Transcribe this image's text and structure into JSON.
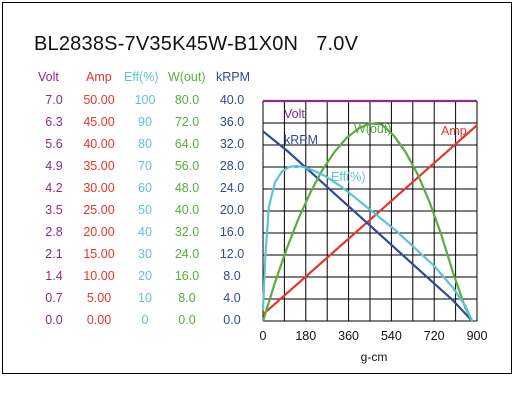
{
  "title": "BL2838S-7V35K45W-B1X0N",
  "voltage_label": "7.0V",
  "colors": {
    "volt": "#8b2c8b",
    "amp": "#e8352a",
    "eff": "#5bc4d8",
    "wout": "#5aad3c",
    "krpm": "#2f4a9c",
    "grid": "#000000",
    "frame": "#000000"
  },
  "chart_data": {
    "type": "line",
    "xlabel": "g-cm",
    "x_ticks": [
      "0",
      "180",
      "360",
      "540",
      "720",
      "900"
    ],
    "xlim": [
      0,
      900
    ],
    "scales": [
      {
        "key": "volt",
        "header": "Volt",
        "ticks": [
          "7.0",
          "6.3",
          "5.6",
          "4.9",
          "4.2",
          "3.5",
          "2.8",
          "2.1",
          "1.4",
          "0.7",
          "0.0"
        ],
        "max": 7.0
      },
      {
        "key": "amp",
        "header": "Amp",
        "ticks": [
          "50.00",
          "45.00",
          "40.00",
          "35.00",
          "30.00",
          "25.00",
          "20.00",
          "15.00",
          "10.00",
          "5.00",
          "0.00"
        ],
        "max": 50
      },
      {
        "key": "eff",
        "header": "Eff(%)",
        "ticks": [
          "100",
          "90",
          "80",
          "70",
          "60",
          "50",
          "40",
          "30",
          "20",
          "10",
          "0"
        ],
        "max": 100
      },
      {
        "key": "wout",
        "header": "W(out)",
        "ticks": [
          "80.0",
          "72.0",
          "64.0",
          "56.0",
          "48.0",
          "40.0",
          "32.0",
          "24.0",
          "16.0",
          "8.0",
          "0.0"
        ],
        "max": 80
      },
      {
        "key": "krpm",
        "header": "kRPM",
        "ticks": [
          "40.0",
          "36.0",
          "32.0",
          "28.0",
          "24.0",
          "20.0",
          "16.0",
          "12.0",
          "8.0",
          "4.0",
          "0.0"
        ],
        "max": 40
      }
    ],
    "series": [
      {
        "name": "Volt",
        "key": "volt",
        "x": [
          0,
          900
        ],
        "y": [
          7.0,
          7.0
        ]
      },
      {
        "name": "Amp",
        "key": "amp",
        "x": [
          0,
          900
        ],
        "y": [
          1.5,
          44.5
        ]
      },
      {
        "name": "kRPM",
        "key": "krpm",
        "x": [
          0,
          100,
          200,
          300,
          400,
          500,
          600,
          700,
          800,
          880
        ],
        "y": [
          34.5,
          31.0,
          27.1,
          23.2,
          19.3,
          15.4,
          11.5,
          7.6,
          3.7,
          0.0
        ]
      },
      {
        "name": "W(out)",
        "key": "wout",
        "x": [
          0,
          50,
          100,
          150,
          200,
          250,
          300,
          350,
          400,
          450,
          500,
          550,
          600,
          650,
          700,
          750,
          800,
          850,
          880
        ],
        "y": [
          0,
          13.9,
          26.4,
          37.4,
          46.9,
          54.9,
          61.4,
          66.4,
          69.9,
          71.9,
          71.4,
          67.4,
          61.4,
          53.4,
          43.4,
          31.4,
          17.4,
          5.0,
          0
        ]
      },
      {
        "name": "Eff(%)",
        "key": "eff",
        "x": [
          0,
          10,
          25,
          50,
          80,
          110,
          140,
          170,
          210,
          260,
          330,
          400,
          480,
          560,
          640,
          720,
          800,
          850,
          880
        ],
        "y": [
          5,
          30,
          52,
          63,
          68,
          70,
          70.5,
          70,
          68.5,
          66,
          61,
          55,
          48,
          41,
          33,
          25,
          15,
          7,
          0
        ]
      }
    ],
    "annotations": [
      {
        "text": "Volt",
        "key": "volt"
      },
      {
        "text": "kRPM",
        "key": "krpm"
      },
      {
        "text": "W(out)",
        "key": "wout"
      },
      {
        "text": "Amp",
        "key": "amp"
      },
      {
        "text": "Eff(%)",
        "key": "eff"
      }
    ],
    "grid": true
  }
}
